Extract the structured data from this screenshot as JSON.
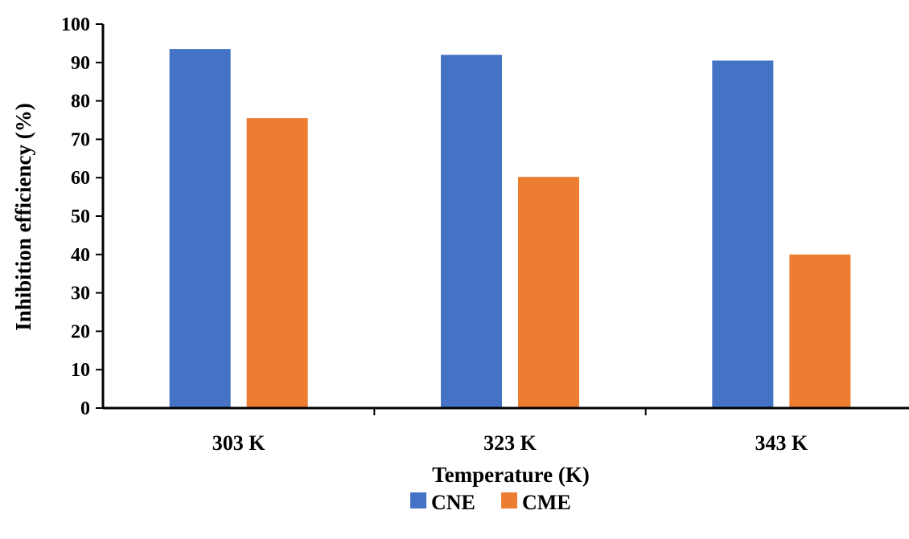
{
  "chart_data": {
    "type": "bar",
    "categories": [
      "303 K",
      "323 K",
      "343 K"
    ],
    "series": [
      {
        "name": "CNE",
        "values": [
          93.5,
          92.0,
          90.5
        ],
        "color": "#4472C4"
      },
      {
        "name": "CME",
        "values": [
          75.5,
          60.2,
          40.0
        ],
        "color": "#ED7D31"
      }
    ],
    "xlabel": "Temperature (K)",
    "ylabel": "Inhibition efficiency (%)",
    "ylim": [
      0,
      100
    ],
    "yticks": [
      "0",
      "10",
      "20",
      "30",
      "40",
      "50",
      "60",
      "70",
      "80",
      "90",
      "100"
    ],
    "grid": false,
    "legend_position": "bottom"
  }
}
